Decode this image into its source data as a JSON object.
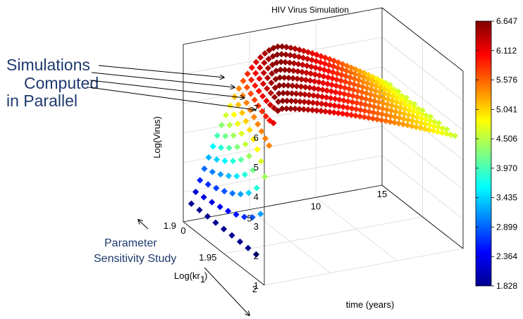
{
  "chart_data": {
    "type": "scatter",
    "title": "HIV Virus Simulation",
    "xlabel": "time (years)",
    "ylabel": "Log(kr_1)",
    "ylabel_main": "Log(kr",
    "ylabel_sub": "1",
    "zlabel": "Log(Virus)",
    "xlim": [
      0,
      15
    ],
    "ylim": [
      1.9,
      2
    ],
    "zlim": [
      1,
      7
    ],
    "x_ticks": [
      "0",
      "5",
      "10",
      "15"
    ],
    "y_ticks": [
      "1.9",
      "1.95",
      "2"
    ],
    "z_ticks": [
      "1",
      "2",
      "3",
      "4",
      "5",
      "6",
      "7"
    ],
    "colorbar": {
      "min": 1.828,
      "max": 6.647,
      "ticks": [
        "6.647",
        "6.112",
        "5.576",
        "5.041",
        "4.506",
        "3.970",
        "3.435",
        "2.899",
        "2.364",
        "1.828"
      ]
    },
    "series_count": 9,
    "kr1_values": [
      1.99,
      1.98,
      1.97,
      1.96,
      1.95,
      1.94,
      1.93,
      1.92,
      1.91
    ],
    "peak_log_virus": [
      6.6,
      6.6,
      6.6,
      6.6,
      6.6,
      6.6,
      6.6,
      6.6,
      6.6
    ],
    "start_log_virus": 1.828,
    "peak_time_years": [
      1.8,
      2.4,
      3.0,
      3.6,
      4.2,
      4.8,
      5.4,
      6.0,
      6.6
    ],
    "end_log_virus": 4.6
  },
  "annotations": {
    "parallel_line1": "Simulations",
    "parallel_line2": "Computed",
    "parallel_line3": "in Parallel",
    "sensitivity_line1": "Parameter",
    "sensitivity_line2": "Sensitivity Study"
  }
}
